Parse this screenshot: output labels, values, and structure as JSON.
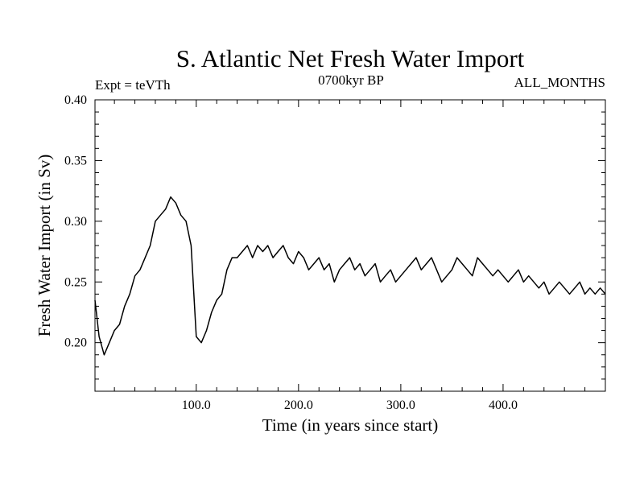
{
  "chart_data": {
    "type": "line",
    "title": "S. Atlantic Net Fresh Water Import",
    "subtitle_left": "Expt = teVTh",
    "subtitle_center": "0700kyr BP",
    "subtitle_right": "ALL_MONTHS",
    "xlabel": "Time (in years since start)",
    "ylabel": "Fresh Water Import (in Sv)",
    "xlim": [
      1,
      500
    ],
    "ylim": [
      0.16,
      0.4
    ],
    "x_ticks_major": [
      100,
      200,
      300,
      400
    ],
    "x_tick_labels": [
      "100.0",
      "200.0",
      "300.0",
      "400.0"
    ],
    "y_ticks_major": [
      0.2,
      0.25,
      0.3,
      0.35,
      0.4
    ],
    "y_tick_labels": [
      "0.20",
      "0.25",
      "0.30",
      "0.35",
      "0.40"
    ],
    "grid": false,
    "series": [
      {
        "x": [
          1,
          5,
          10,
          15,
          20,
          25,
          30,
          35,
          40,
          45,
          50,
          55,
          60,
          65,
          70,
          75,
          80,
          85,
          90,
          95,
          100,
          105,
          110,
          115,
          120,
          125,
          130,
          135,
          140,
          145,
          150,
          155,
          160,
          165,
          170,
          175,
          180,
          185,
          190,
          195,
          200,
          205,
          210,
          215,
          220,
          225,
          230,
          235,
          240,
          245,
          250,
          255,
          260,
          265,
          270,
          275,
          280,
          285,
          290,
          295,
          300,
          305,
          310,
          315,
          320,
          325,
          330,
          335,
          340,
          345,
          350,
          355,
          360,
          365,
          370,
          375,
          380,
          385,
          390,
          395,
          400,
          405,
          410,
          415,
          420,
          425,
          430,
          435,
          440,
          445,
          450,
          455,
          460,
          465,
          470,
          475,
          480,
          485,
          490,
          495,
          500
        ],
        "y": [
          0.235,
          0.205,
          0.19,
          0.2,
          0.21,
          0.215,
          0.23,
          0.24,
          0.255,
          0.26,
          0.27,
          0.28,
          0.3,
          0.305,
          0.31,
          0.32,
          0.315,
          0.305,
          0.3,
          0.28,
          0.205,
          0.2,
          0.21,
          0.225,
          0.235,
          0.24,
          0.26,
          0.27,
          0.27,
          0.275,
          0.28,
          0.27,
          0.28,
          0.275,
          0.28,
          0.27,
          0.275,
          0.28,
          0.27,
          0.265,
          0.275,
          0.27,
          0.26,
          0.265,
          0.27,
          0.26,
          0.265,
          0.25,
          0.26,
          0.265,
          0.27,
          0.26,
          0.265,
          0.255,
          0.26,
          0.265,
          0.25,
          0.255,
          0.26,
          0.25,
          0.255,
          0.26,
          0.265,
          0.27,
          0.26,
          0.265,
          0.27,
          0.26,
          0.25,
          0.255,
          0.26,
          0.27,
          0.265,
          0.26,
          0.255,
          0.27,
          0.265,
          0.26,
          0.255,
          0.26,
          0.255,
          0.25,
          0.255,
          0.26,
          0.25,
          0.255,
          0.25,
          0.245,
          0.25,
          0.24,
          0.245,
          0.25,
          0.245,
          0.24,
          0.245,
          0.25,
          0.24,
          0.245,
          0.24,
          0.245,
          0.24
        ],
        "color": "#000000"
      }
    ]
  }
}
